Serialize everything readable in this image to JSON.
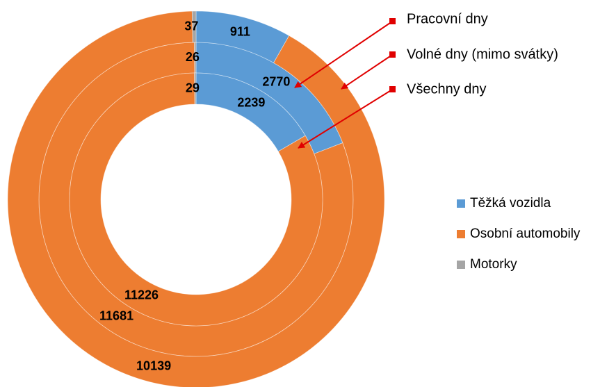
{
  "chart_data": {
    "type": "multi-donut",
    "categories": [
      "Pracovní dny",
      "Volné dny (mimo svátky)",
      "Všechny dny"
    ],
    "series": [
      {
        "name": "Těžká vozidla",
        "color": "#5b9bd5",
        "values": [
          2770,
          911,
          2239
        ]
      },
      {
        "name": "Osobní automobily",
        "color": "#ed7d31",
        "values": [
          11681,
          10139,
          11226
        ]
      },
      {
        "name": "Motorky",
        "color": "#a5a5a5",
        "values": [
          26,
          37,
          29
        ]
      }
    ],
    "legend": "right"
  }
}
